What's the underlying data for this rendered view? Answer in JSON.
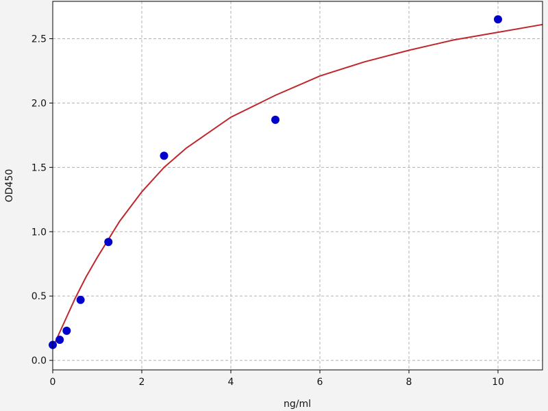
{
  "chart_data": {
    "type": "scatter",
    "title": "",
    "xlabel": "ng/ml",
    "ylabel": "OD450",
    "xlim": [
      0,
      11
    ],
    "ylim": [
      -0.074,
      2.79
    ],
    "xticks": [
      0,
      2,
      4,
      6,
      8,
      10
    ],
    "yticks": [
      0.0,
      0.5,
      1.0,
      1.5,
      2.0,
      2.5
    ],
    "ytick_labels": [
      "0.0",
      "0.5",
      "1.0",
      "1.5",
      "2.0",
      "2.5"
    ],
    "grid": true,
    "points": {
      "color": "#0000cc",
      "x": [
        0,
        0.156,
        0.3125,
        0.625,
        1.25,
        2.5,
        5,
        10
      ],
      "y": [
        0.12,
        0.16,
        0.23,
        0.47,
        0.92,
        1.59,
        1.87,
        2.65
      ]
    },
    "fit": {
      "color": "#c0262b",
      "x": [
        0,
        0.25,
        0.5,
        0.75,
        1,
        1.5,
        2,
        2.5,
        3,
        4,
        5,
        6,
        7,
        8,
        9,
        10,
        11
      ],
      "y": [
        0.1,
        0.29,
        0.48,
        0.65,
        0.8,
        1.08,
        1.31,
        1.5,
        1.65,
        1.89,
        2.06,
        2.21,
        2.32,
        2.41,
        2.49,
        2.55,
        2.61
      ]
    }
  }
}
